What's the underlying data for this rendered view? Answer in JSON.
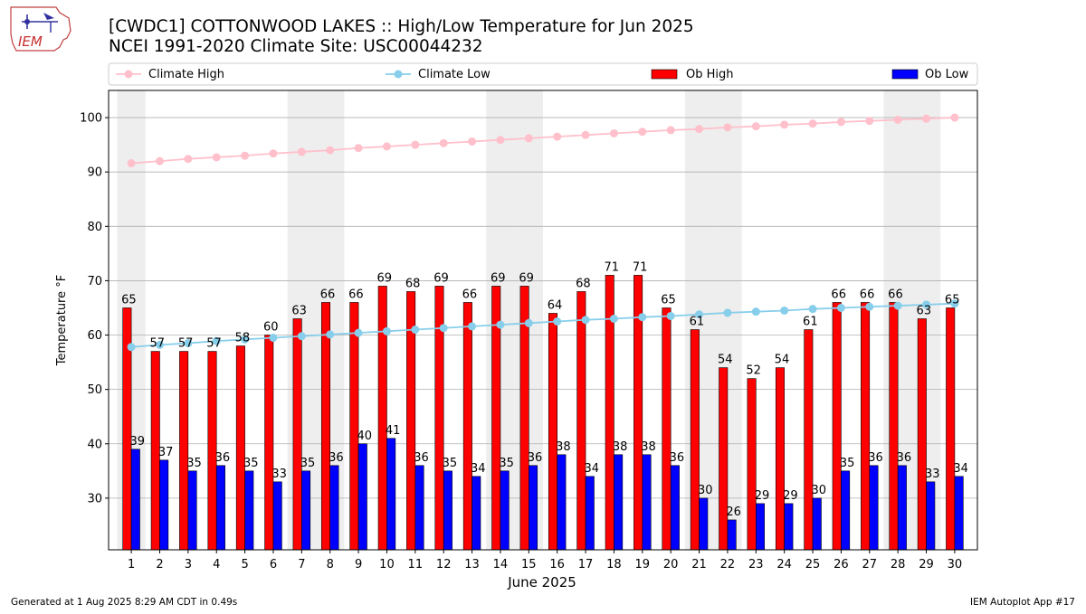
{
  "header": {
    "title_line1": "[CWDC1] COTTONWOOD LAKES :: High/Low Temperature for Jun 2025",
    "title_line2": "NCEI 1991-2020 Climate Site: USC00044232",
    "logo_text": "IEM"
  },
  "footer": {
    "generated": "Generated at 1 Aug 2025 8:29 AM CDT in 0.49s",
    "app": "IEM Autoplot App #17"
  },
  "colors": {
    "climate_high": "#ffc0cb",
    "climate_low": "#87ceeb",
    "ob_high": "#ff0000",
    "ob_low": "#0000ff",
    "weekend_shade": "#eeeeee",
    "grid": "#b0b0b0"
  },
  "chart_data": {
    "type": "bar",
    "xlabel": "June 2025",
    "ylabel": "Temperature °F",
    "ylim": [
      20.5,
      105
    ],
    "yticks": [
      30,
      40,
      50,
      60,
      70,
      80,
      90,
      100
    ],
    "grid": "horizontal",
    "legend": "top",
    "categories": [
      1,
      2,
      3,
      4,
      5,
      6,
      7,
      8,
      9,
      10,
      11,
      12,
      13,
      14,
      15,
      16,
      17,
      18,
      19,
      20,
      21,
      22,
      23,
      24,
      25,
      26,
      27,
      28,
      29,
      30
    ],
    "shaded_days": [
      1,
      7,
      8,
      14,
      15,
      21,
      22,
      28,
      29
    ],
    "series": [
      {
        "name": "Climate High",
        "kind": "line",
        "values": [
          91.6,
          92.0,
          92.4,
          92.7,
          93.0,
          93.4,
          93.7,
          94.0,
          94.4,
          94.7,
          95.0,
          95.3,
          95.6,
          95.9,
          96.2,
          96.5,
          96.8,
          97.1,
          97.4,
          97.7,
          97.9,
          98.2,
          98.4,
          98.7,
          98.9,
          99.2,
          99.4,
          99.6,
          99.8,
          100.0
        ]
      },
      {
        "name": "Climate Low",
        "kind": "line",
        "values": [
          57.8,
          58.2,
          58.5,
          58.9,
          59.2,
          59.5,
          59.8,
          60.1,
          60.4,
          60.7,
          61.0,
          61.3,
          61.6,
          61.9,
          62.2,
          62.5,
          62.8,
          63.0,
          63.3,
          63.5,
          63.8,
          64.1,
          64.3,
          64.5,
          64.8,
          65.0,
          65.2,
          65.4,
          65.6,
          65.8
        ]
      },
      {
        "name": "Ob High",
        "kind": "bar",
        "values": [
          65,
          57,
          57,
          57,
          58,
          60,
          63,
          66,
          66,
          69,
          68,
          69,
          66,
          69,
          69,
          64,
          68,
          71,
          71,
          65,
          61,
          54,
          52,
          54,
          61,
          66,
          66,
          66,
          63,
          65
        ]
      },
      {
        "name": "Ob Low",
        "kind": "bar",
        "values": [
          39,
          37,
          35,
          36,
          35,
          33,
          35,
          36,
          40,
          41,
          36,
          35,
          34,
          35,
          36,
          38,
          34,
          38,
          38,
          36,
          30,
          26,
          29,
          29,
          30,
          35,
          36,
          36,
          33,
          34
        ]
      }
    ]
  }
}
